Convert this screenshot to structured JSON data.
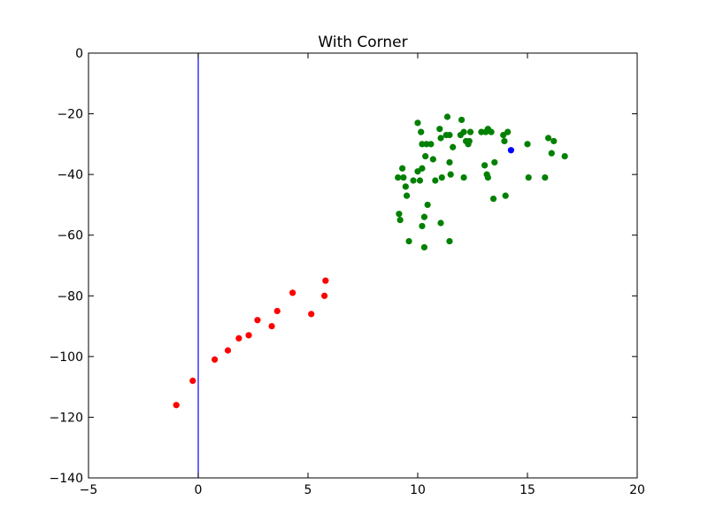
{
  "chart_data": {
    "type": "scatter",
    "title": "With Corner",
    "xlabel": "",
    "ylabel": "",
    "xlim": [
      -5,
      20
    ],
    "ylim": [
      -140,
      0
    ],
    "xticks": [
      -5,
      0,
      5,
      10,
      15,
      20
    ],
    "yticks": [
      0,
      -20,
      -40,
      -60,
      -80,
      -100,
      -120,
      -140
    ],
    "grid": false,
    "vertical_line": {
      "x": 0,
      "color": "#0000ff"
    },
    "series": [
      {
        "name": "red",
        "color": "#ff0000",
        "points": [
          [
            -1.0,
            -116
          ],
          [
            -0.25,
            -108
          ],
          [
            0.75,
            -101
          ],
          [
            1.35,
            -98
          ],
          [
            1.85,
            -94
          ],
          [
            2.3,
            -93
          ],
          [
            2.7,
            -88
          ],
          [
            3.35,
            -90
          ],
          [
            3.6,
            -85
          ],
          [
            4.3,
            -79
          ],
          [
            5.15,
            -86
          ],
          [
            5.75,
            -80
          ],
          [
            5.8,
            -75
          ]
        ]
      },
      {
        "name": "green",
        "color": "#008000",
        "points": [
          [
            9.1,
            -41
          ],
          [
            9.15,
            -53
          ],
          [
            9.2,
            -55
          ],
          [
            9.3,
            -38
          ],
          [
            9.35,
            -41
          ],
          [
            9.45,
            -44
          ],
          [
            9.5,
            -47
          ],
          [
            9.6,
            -62
          ],
          [
            9.8,
            -42
          ],
          [
            10.0,
            -39
          ],
          [
            10.0,
            -23
          ],
          [
            10.1,
            -42
          ],
          [
            10.15,
            -26
          ],
          [
            10.2,
            -30
          ],
          [
            10.2,
            -38
          ],
          [
            10.2,
            -57
          ],
          [
            10.3,
            -54
          ],
          [
            10.3,
            -64
          ],
          [
            10.35,
            -34
          ],
          [
            10.4,
            -30
          ],
          [
            10.45,
            -50
          ],
          [
            10.6,
            -30
          ],
          [
            10.7,
            -35
          ],
          [
            10.8,
            -42
          ],
          [
            11.0,
            -25
          ],
          [
            11.05,
            -28
          ],
          [
            11.05,
            -56
          ],
          [
            11.1,
            -41
          ],
          [
            11.3,
            -27
          ],
          [
            11.35,
            -21
          ],
          [
            11.45,
            -27
          ],
          [
            11.45,
            -36
          ],
          [
            11.5,
            -40
          ],
          [
            11.45,
            -62
          ],
          [
            11.6,
            -31
          ],
          [
            11.95,
            -27
          ],
          [
            12.0,
            -22
          ],
          [
            12.1,
            -26
          ],
          [
            12.1,
            -41
          ],
          [
            12.2,
            -29
          ],
          [
            12.3,
            -30
          ],
          [
            12.35,
            -29
          ],
          [
            12.4,
            -26
          ],
          [
            12.9,
            -26
          ],
          [
            13.05,
            -37
          ],
          [
            13.1,
            -26
          ],
          [
            13.15,
            -40
          ],
          [
            13.2,
            -25
          ],
          [
            13.2,
            -41
          ],
          [
            13.35,
            -26
          ],
          [
            13.45,
            -48
          ],
          [
            13.5,
            -36
          ],
          [
            13.9,
            -27
          ],
          [
            13.95,
            -29
          ],
          [
            14.0,
            -47
          ],
          [
            14.1,
            -26
          ],
          [
            15.0,
            -30
          ],
          [
            15.05,
            -41
          ],
          [
            15.8,
            -41
          ],
          [
            15.95,
            -28
          ],
          [
            16.1,
            -33
          ],
          [
            16.2,
            -29
          ],
          [
            16.7,
            -34
          ]
        ]
      },
      {
        "name": "blue",
        "color": "#0000ff",
        "points": [
          [
            14.25,
            -32
          ]
        ]
      }
    ]
  }
}
